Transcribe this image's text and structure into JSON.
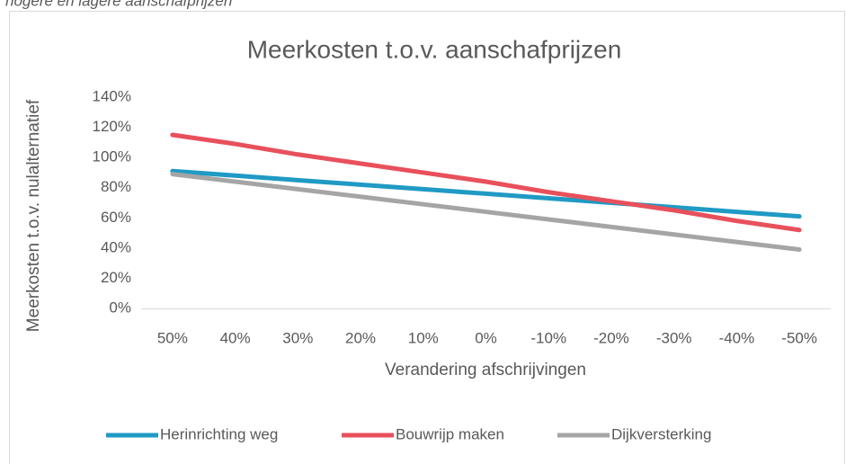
{
  "caption": "hogere en lagere aanschafprijzen",
  "chart_data": {
    "type": "line",
    "title": "Meerkosten t.o.v. aanschafprijzen",
    "x_label": "Verandering afschrijvingen",
    "y_label": "Meerkosten t.o.v. nulalternatief",
    "categories": [
      "50%",
      "40%",
      "30%",
      "20%",
      "10%",
      "0%",
      "-10%",
      "-20%",
      "-30%",
      "-40%",
      "-50%"
    ],
    "series": [
      {
        "name": "Herinrichting weg",
        "color": "#1f9ac4",
        "values": [
          91,
          88,
          85,
          82,
          79,
          76,
          73,
          70,
          67,
          64,
          61
        ]
      },
      {
        "name": "Bouwrijp maken",
        "color": "#e8505b",
        "values": [
          115,
          109,
          102,
          96,
          90,
          84,
          77,
          71,
          65,
          58,
          52
        ]
      },
      {
        "name": "Dijkversterking",
        "color": "#a5a5a5",
        "values": [
          89,
          84,
          79,
          74,
          69,
          64,
          59,
          54,
          49,
          44,
          39
        ]
      }
    ],
    "ylim": [
      0,
      140
    ],
    "yticks": [
      {
        "value": 0,
        "label": "0%"
      },
      {
        "value": 20,
        "label": "20%"
      },
      {
        "value": 40,
        "label": "40%"
      },
      {
        "value": 60,
        "label": "60%"
      },
      {
        "value": 80,
        "label": "80%"
      },
      {
        "value": 100,
        "label": "100%"
      },
      {
        "value": 120,
        "label": "120%"
      },
      {
        "value": 140,
        "label": "140%"
      }
    ],
    "grid": false,
    "legend": "bottom"
  }
}
